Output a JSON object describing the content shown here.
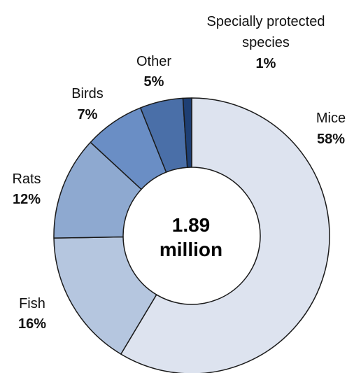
{
  "chart_data": {
    "type": "pie",
    "variant": "donut",
    "center_label": [
      "1.89",
      "million"
    ],
    "slices": [
      {
        "label": [
          "Mice"
        ],
        "value": 58,
        "pct_label": "58%",
        "color": "#dde3ef"
      },
      {
        "label": [
          "Fish"
        ],
        "value": 16,
        "pct_label": "16%",
        "color": "#b5c6df"
      },
      {
        "label": [
          "Rats"
        ],
        "value": 12,
        "pct_label": "12%",
        "color": "#8ea9d0"
      },
      {
        "label": [
          "Birds"
        ],
        "value": 7,
        "pct_label": "7%",
        "color": "#6a8ec5"
      },
      {
        "label": [
          "Other"
        ],
        "value": 5,
        "pct_label": "5%",
        "color": "#4a6fa8"
      },
      {
        "label": [
          "Specially protected",
          "species"
        ],
        "value": 1,
        "pct_label": "1%",
        "color": "#1e3f74"
      }
    ]
  }
}
